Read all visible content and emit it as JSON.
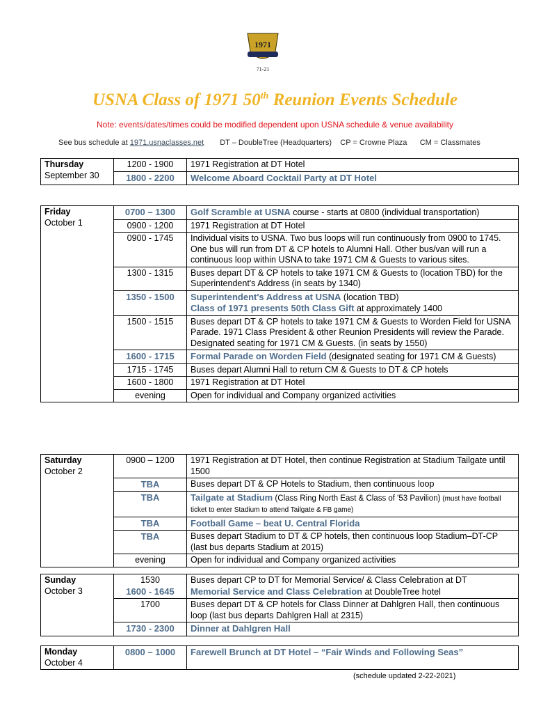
{
  "header": {
    "logo_text": "1971 50th Reunion 71-21",
    "title": "USNA Class of 1971 50",
    "title_sup": "th",
    "title_rest": " Reunion Events Schedule",
    "note": "Note: events/dates/times could be modified dependent upon USNA schedule & venue availability",
    "bus_prefix": "See bus schedule at ",
    "bus_link": "1971.usnaclasses.net",
    "dt": "DT – DoubleTree (Headquarters)",
    "cp": "CP = Crowne Plaza",
    "cm": "CM = Classmates"
  },
  "colors": {
    "title": "#f0b323",
    "note": "#e0161c",
    "highlight": "#4e6d8c"
  },
  "days": [
    {
      "day": "Thursday",
      "date": "September 30",
      "rows": [
        {
          "times": [
            {
              "t": "1200 - 1900"
            }
          ],
          "paras": [
            [
              {
                "t": "1971 Registration at DT Hotel"
              }
            ]
          ]
        },
        {
          "times": [
            {
              "t": "1800 - 2200",
              "hl": true
            }
          ],
          "paras": [
            [
              {
                "t": "Welcome Aboard Cocktail Party at DT Hotel",
                "hl": true
              }
            ]
          ]
        }
      ]
    },
    {
      "day": "Friday",
      "date": "October 1",
      "rows": [
        {
          "times": [
            {
              "t": "0700 – 1300",
              "hl": true
            }
          ],
          "paras": [
            [
              {
                "t": "Golf Scramble at USNA",
                "hl": true
              },
              {
                "t": " course - starts at 0800 (individual transportation)"
              }
            ]
          ]
        },
        {
          "times": [
            {
              "t": "0900 - 1200"
            }
          ],
          "paras": [
            [
              {
                "t": "1971 Registration at DT Hotel"
              }
            ]
          ]
        },
        {
          "times": [
            {
              "t": "0900 - 1745"
            }
          ],
          "paras": [
            [
              {
                "t": "Individual visits to USNA.  Two bus loops will run continuously from 0900 to 1745.  One bus will run from DT & CP hotels to Alumni Hall.  Other bus/van will run a continuous loop within USNA to take 1971 CM & Guests to various sites."
              }
            ]
          ]
        },
        {
          "times": [
            {
              "t": "1300 - 1315"
            }
          ],
          "paras": [
            [
              {
                "t": "Buses depart DT & CP hotels to take 1971 CM & Guests to (location TBD) for the Superintendent's Address (in seats by 1340)"
              }
            ]
          ]
        },
        {
          "times": [
            {
              "t": "1350 - 1500",
              "hl": true
            }
          ],
          "paras": [
            [
              {
                "t": "Superintendent's Address at USNA",
                "hl": true
              },
              {
                "t": " (location TBD)"
              }
            ],
            [
              {
                "t": "Class of 1971 presents 50th Class Gift",
                "hl": true
              },
              {
                "t": " at approximately 1400"
              }
            ]
          ]
        },
        {
          "times": [
            {
              "t": "1500 - 1515"
            }
          ],
          "paras": [
            [
              {
                "t": "Buses depart DT & CP hotels to take 1971 CM & Guests to Worden Field for USNA Parade.  1971 Class President & other Reunion Presidents will review the Parade.  Designated seating for 1971 CM & Guests. (in seats by 1550)"
              }
            ]
          ]
        },
        {
          "times": [
            {
              "t": "1600 - 1715",
              "hl": true
            }
          ],
          "paras": [
            [
              {
                "t": "Formal Parade on Worden Field",
                "hl": true
              },
              {
                "t": " (designated seating for 1971 CM & Guests)"
              }
            ]
          ]
        },
        {
          "times": [
            {
              "t": "1715 - 1745"
            }
          ],
          "paras": [
            [
              {
                "t": "Buses depart Alumni Hall to return CM & Guests to DT & CP hotels"
              }
            ]
          ]
        },
        {
          "times": [
            {
              "t": "1600 - 1800"
            }
          ],
          "paras": [
            [
              {
                "t": "1971 Registration at DT Hotel"
              }
            ]
          ]
        },
        {
          "times": [
            {
              "t": "evening"
            }
          ],
          "paras": [
            [
              {
                "t": "Open for individual and Company organized activities"
              }
            ]
          ]
        }
      ]
    },
    {
      "day": "Saturday",
      "date": "October 2",
      "rows": [
        {
          "times": [
            {
              "t": "0900 – 1200"
            }
          ],
          "paras": [
            [
              {
                "t": "1971 Registration at DT Hotel, then continue Registration at Stadium Tailgate until 1500"
              }
            ]
          ]
        },
        {
          "times": [
            {
              "t": "TBA",
              "hl": true
            }
          ],
          "paras": [
            [
              {
                "t": "Buses depart DT & CP Hotels to Stadium, then continuous loop"
              }
            ]
          ]
        },
        {
          "times": [
            {
              "t": "TBA",
              "hl": true
            }
          ],
          "paras": [
            [
              {
                "t": "Tailgate at Stadium",
                "hl": true
              },
              {
                "t": " (Class Ring North East & Class of '53 Pavilion)",
                "mid": true
              },
              {
                "t": " (must have football ticket to enter Stadium to attend Tailgate & FB game)",
                "small": true
              }
            ]
          ]
        },
        {
          "times": [
            {
              "t": "TBA",
              "hl": true
            }
          ],
          "paras": [
            [
              {
                "t": "Football Game – beat U. Central Florida",
                "hl": true
              }
            ]
          ]
        },
        {
          "times": [
            {
              "t": "TBA",
              "hl": true
            }
          ],
          "paras": [
            [
              {
                "t": "Buses depart Stadium to DT & CP hotels, then continuous loop Stadium–DT-CP (last bus departs Stadium at 2015)"
              }
            ]
          ]
        },
        {
          "times": [
            {
              "t": "evening"
            }
          ],
          "paras": [
            [
              {
                "t": "Open for individual and Company organized activities"
              }
            ]
          ]
        }
      ]
    },
    {
      "day": "Sunday",
      "date": "October 3",
      "rows": [
        {
          "times": [
            {
              "t": "1530"
            },
            {
              "t": "1600 - 1645",
              "hl": true
            }
          ],
          "paras": [
            [
              {
                "t": "Buses depart CP to DT for Memorial Service/ & Class Celebration at DT"
              }
            ],
            [
              {
                "t": "Memorial Service and Class Celebration",
                "hl": true
              },
              {
                "t": " at DoubleTree hotel"
              }
            ]
          ]
        },
        {
          "times": [
            {
              "t": "1700"
            }
          ],
          "paras": [
            [
              {
                "t": "Buses depart DT & CP hotels for Class Dinner at Dahlgren Hall, then continuous loop (last bus departs Dahlgren Hall at 2315)"
              }
            ]
          ]
        },
        {
          "times": [
            {
              "t": "1730 - 2300",
              "hl": true
            }
          ],
          "paras": [
            [
              {
                "t": "Dinner at Dahlgren Hall",
                "hl": true
              }
            ]
          ]
        }
      ]
    },
    {
      "day": "Monday",
      "date": "October 4",
      "rows": [
        {
          "times": [
            {
              "t": "0800 – 1000",
              "hl": true
            }
          ],
          "paras": [
            [
              {
                "t": "Farewell Brunch at DT Hotel – “Fair Winds and Following Seas”",
                "hl": true
              }
            ]
          ]
        }
      ]
    }
  ],
  "footer": {
    "updated": "(schedule updated 2-22-2021)"
  }
}
